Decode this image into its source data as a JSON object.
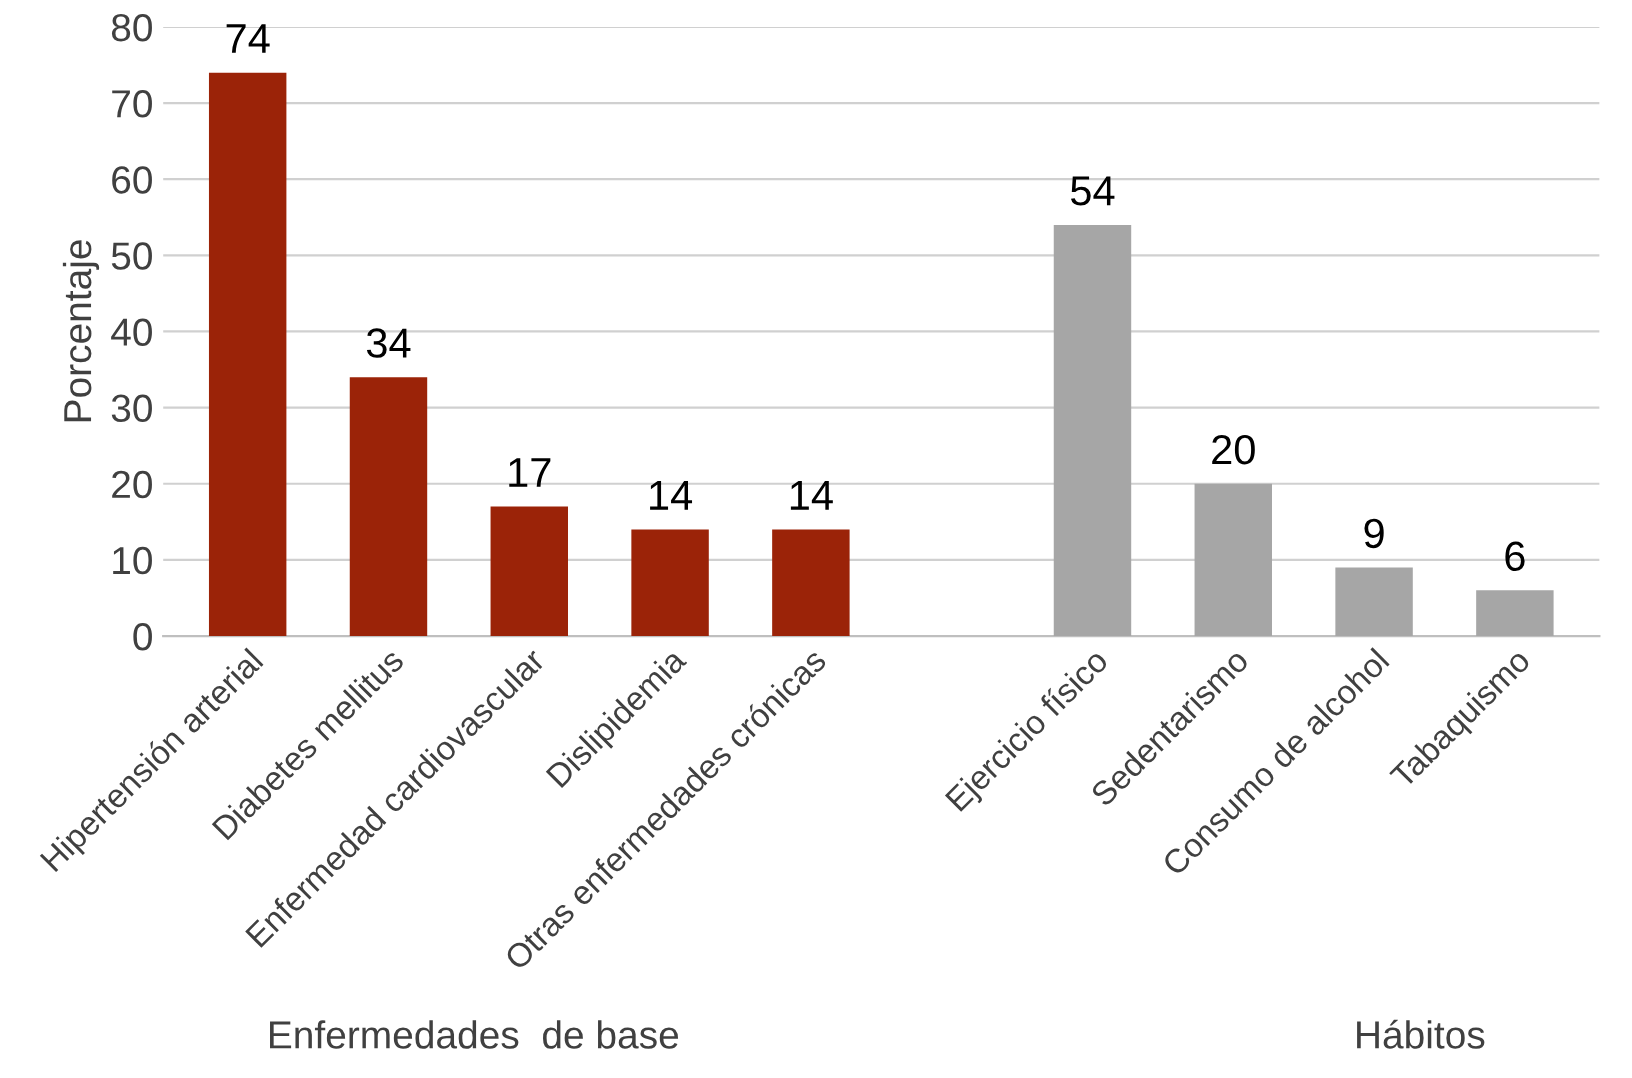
{
  "chart_data": {
    "type": "bar",
    "ylabel": "Porcentaje",
    "categories": [
      "Hipertensión arterial",
      "Diabetes mellitus",
      "Enfermedad cardiovascular",
      "Dislipidemia",
      "Otras enfermedades crónicas",
      null,
      "Ejercicio físico",
      "Sedentarismo",
      "Consumo de alcohol",
      "Tabaquismo"
    ],
    "values": [
      74,
      34,
      17,
      14,
      14,
      null,
      54,
      20,
      9,
      6
    ],
    "colors": [
      "#9b2308",
      "#9b2308",
      "#9b2308",
      "#9b2308",
      "#9b2308",
      null,
      "#a6a6a6",
      "#a6a6a6",
      "#a6a6a6",
      "#a6a6a6"
    ],
    "ylim": [
      0,
      80
    ],
    "yticks": [
      0,
      10,
      20,
      30,
      40,
      50,
      60,
      70,
      80
    ],
    "grid": "y",
    "data_labels": true,
    "legend": false,
    "annotations": [
      "Enfermedades  de base",
      "Hábitos"
    ]
  }
}
